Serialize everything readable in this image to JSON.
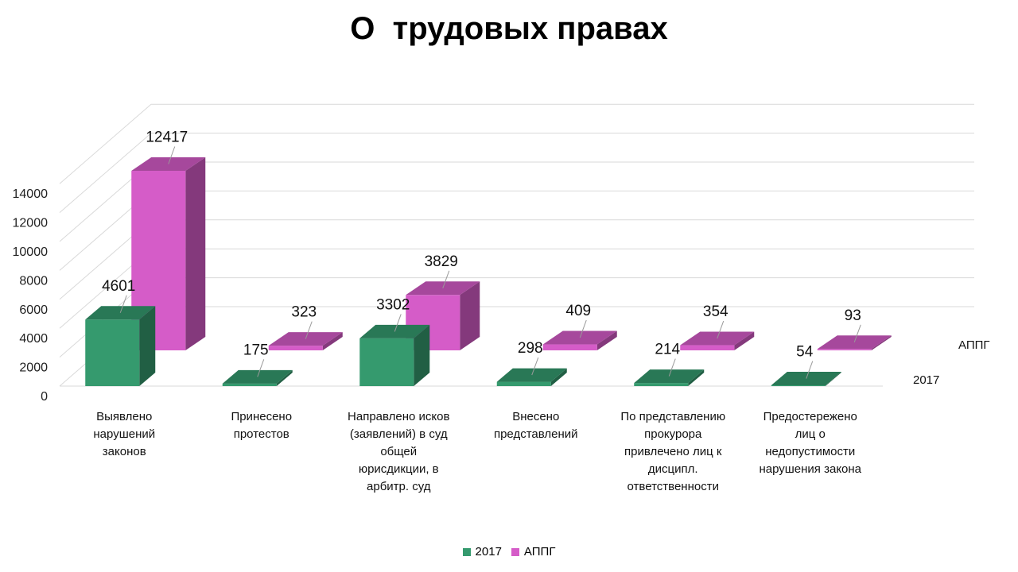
{
  "title": "О  трудовых правах",
  "chart_data": {
    "type": "bar",
    "title": "О  трудовых правах",
    "categories": [
      [
        "Выявлено",
        "нарушений",
        "законов"
      ],
      [
        "Принесено",
        "протестов"
      ],
      [
        "Направлено исков",
        "(заявлений) в суд",
        "общей",
        "юрисдикции, в",
        "арбитр. суд"
      ],
      [
        "Внесено",
        "представлений"
      ],
      [
        "По представлению",
        "прокурора",
        "привлечено лиц к",
        "дисципл.",
        "ответственности"
      ],
      [
        "Предостережено",
        "лиц о",
        "недопустимости",
        "нарушения  закона"
      ]
    ],
    "series": [
      {
        "name": "2017",
        "values": [
          4601,
          175,
          3302,
          298,
          214,
          54
        ]
      },
      {
        "name": "АППГ",
        "values": [
          12417,
          323,
          3829,
          409,
          354,
          93
        ]
      }
    ],
    "ylim": [
      0,
      14000
    ],
    "yticks": [
      0,
      2000,
      4000,
      6000,
      8000,
      10000,
      12000,
      14000
    ],
    "grid": true,
    "legend_position": "bottom",
    "colors": {
      "2017": "#359a6e",
      "АППГ": "#d55cc8"
    }
  }
}
